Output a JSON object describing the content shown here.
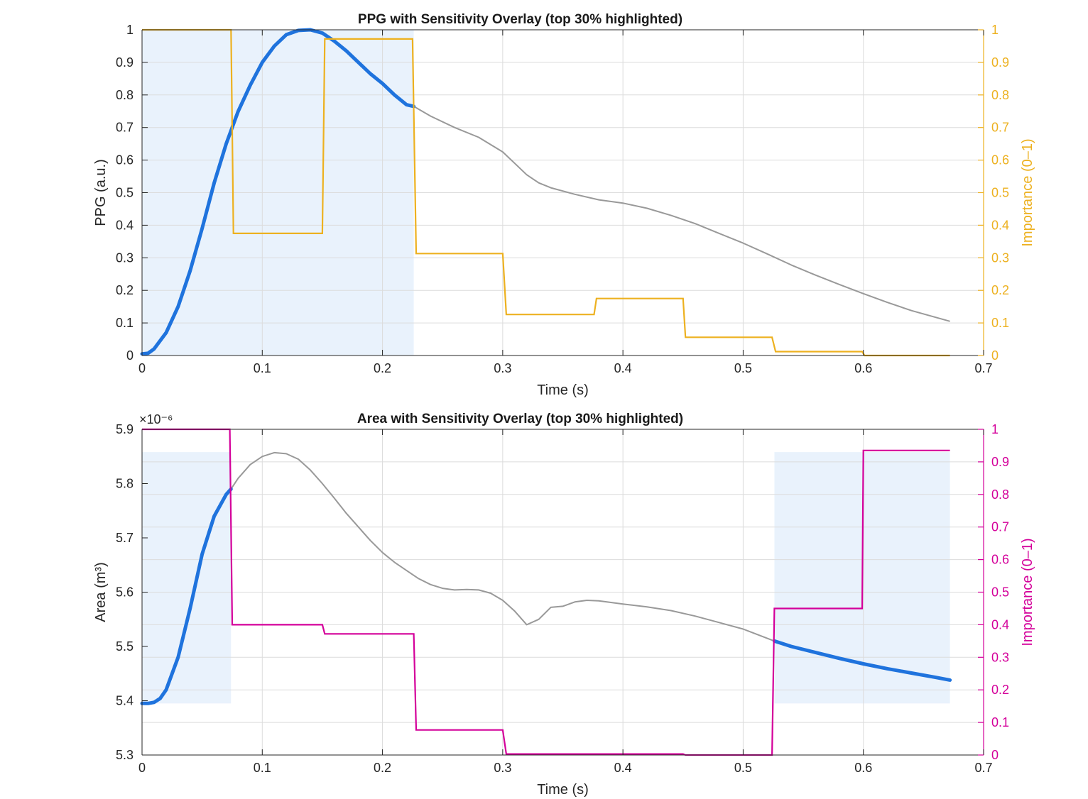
{
  "colors": {
    "ppg_importance": "#EDB120",
    "area_importance": "#D4009A",
    "trace": "#999999",
    "highlight": "#1F73DD",
    "shade": "#E9F2FC",
    "grid": "#DCDCDC",
    "axis": "#262626"
  },
  "chart_data": [
    {
      "type": "line",
      "title": "PPG with Sensitivity Overlay (top 30% highlighted)",
      "xlabel": "Time (s)",
      "ylabel": "PPG (a.u.)",
      "ylabel_right": "Importance (0–1)",
      "xlim": [
        0,
        0.7
      ],
      "ylim": [
        0,
        1
      ],
      "ylim_right": [
        0,
        1
      ],
      "y_exponent": "",
      "grid": true,
      "xticks": [
        "0",
        "0.1",
        "0.2",
        "0.3",
        "0.4",
        "0.5",
        "0.6",
        "0.7"
      ],
      "yticks": [
        "0",
        "0.1",
        "0.2",
        "0.3",
        "0.4",
        "0.5",
        "0.6",
        "0.7",
        "0.8",
        "0.9",
        "1"
      ],
      "yticks_right": [
        "0",
        "0.1",
        "0.2",
        "0.3",
        "0.4",
        "0.5",
        "0.6",
        "0.7",
        "0.8",
        "0.9",
        "1"
      ],
      "shaded_regions": [
        {
          "x": [
            0,
            0.226
          ],
          "y": [
            0,
            1
          ]
        }
      ],
      "series": [
        {
          "role": "signal",
          "x": [
            0,
            0.005,
            0.01,
            0.02,
            0.03,
            0.04,
            0.05,
            0.06,
            0.07,
            0.08,
            0.09,
            0.1,
            0.11,
            0.12,
            0.13,
            0.14,
            0.15,
            0.16,
            0.17,
            0.18,
            0.19,
            0.2,
            0.21,
            0.22,
            0.226,
            0.24,
            0.26,
            0.28,
            0.3,
            0.31,
            0.32,
            0.33,
            0.34,
            0.36,
            0.38,
            0.4,
            0.42,
            0.44,
            0.46,
            0.48,
            0.5,
            0.52,
            0.54,
            0.56,
            0.58,
            0.6,
            0.62,
            0.64,
            0.672
          ],
          "y": [
            0.005,
            0.007,
            0.02,
            0.07,
            0.15,
            0.26,
            0.39,
            0.53,
            0.65,
            0.75,
            0.83,
            0.9,
            0.95,
            0.985,
            0.998,
            1.0,
            0.99,
            0.965,
            0.935,
            0.9,
            0.865,
            0.835,
            0.8,
            0.77,
            0.765,
            0.735,
            0.7,
            0.67,
            0.625,
            0.59,
            0.555,
            0.53,
            0.515,
            0.495,
            0.478,
            0.468,
            0.452,
            0.43,
            0.405,
            0.375,
            0.345,
            0.312,
            0.278,
            0.247,
            0.218,
            0.19,
            0.163,
            0.138,
            0.105
          ]
        },
        {
          "role": "importance",
          "x": [
            0,
            0.074,
            0.076,
            0.15,
            0.152,
            0.225,
            0.228,
            0.3,
            0.303,
            0.376,
            0.378,
            0.45,
            0.452,
            0.524,
            0.527,
            0.599,
            0.601,
            0.672
          ],
          "y": [
            1.0,
            1.0,
            0.375,
            0.375,
            0.972,
            0.972,
            0.313,
            0.313,
            0.126,
            0.126,
            0.175,
            0.175,
            0.056,
            0.056,
            0.012,
            0.012,
            0.0,
            0.0
          ]
        }
      ]
    },
    {
      "type": "line",
      "title": "Area with Sensitivity Overlay (top 30% highlighted)",
      "xlabel": "Time (s)",
      "ylabel": "Area  (m³)",
      "ylabel_right": "Importance (0–1)",
      "xlim": [
        0,
        0.7
      ],
      "ylim": [
        5.3,
        5.9
      ],
      "ylim_right": [
        0,
        1
      ],
      "y_exponent": "×10⁻⁶",
      "grid": true,
      "xticks": [
        "0",
        "0.1",
        "0.2",
        "0.3",
        "0.4",
        "0.5",
        "0.6",
        "0.7"
      ],
      "yticks": [
        "5.3",
        "5.4",
        "5.5",
        "5.6",
        "5.7",
        "5.8",
        "5.9"
      ],
      "yticks_right": [
        "0",
        "0.1",
        "0.2",
        "0.3",
        "0.4",
        "0.5",
        "0.6",
        "0.7",
        "0.8",
        "0.9",
        "1"
      ],
      "shaded_regions": [
        {
          "x": [
            0,
            0.074
          ],
          "y": [
            5.395,
            5.858
          ]
        },
        {
          "x": [
            0.526,
            0.672
          ],
          "y": [
            5.395,
            5.858
          ]
        }
      ],
      "series": [
        {
          "role": "signal",
          "x": [
            0,
            0.005,
            0.01,
            0.015,
            0.02,
            0.03,
            0.04,
            0.05,
            0.06,
            0.07,
            0.074,
            0.08,
            0.09,
            0.1,
            0.11,
            0.12,
            0.13,
            0.14,
            0.15,
            0.16,
            0.17,
            0.18,
            0.19,
            0.2,
            0.21,
            0.22,
            0.23,
            0.24,
            0.25,
            0.26,
            0.27,
            0.28,
            0.29,
            0.3,
            0.31,
            0.32,
            0.33,
            0.34,
            0.35,
            0.36,
            0.37,
            0.38,
            0.39,
            0.4,
            0.42,
            0.44,
            0.46,
            0.48,
            0.5,
            0.526,
            0.54,
            0.56,
            0.58,
            0.6,
            0.62,
            0.64,
            0.66,
            0.672
          ],
          "y": [
            5.395,
            5.395,
            5.397,
            5.404,
            5.42,
            5.48,
            5.57,
            5.67,
            5.74,
            5.78,
            5.79,
            5.81,
            5.835,
            5.85,
            5.857,
            5.855,
            5.845,
            5.825,
            5.8,
            5.773,
            5.745,
            5.72,
            5.695,
            5.673,
            5.655,
            5.64,
            5.625,
            5.614,
            5.607,
            5.604,
            5.605,
            5.604,
            5.598,
            5.585,
            5.565,
            5.54,
            5.55,
            5.572,
            5.574,
            5.582,
            5.585,
            5.584,
            5.581,
            5.578,
            5.573,
            5.566,
            5.556,
            5.544,
            5.532,
            5.51,
            5.5,
            5.489,
            5.478,
            5.468,
            5.459,
            5.451,
            5.443,
            5.438
          ]
        },
        {
          "role": "importance",
          "x": [
            0,
            0.073,
            0.075,
            0.15,
            0.152,
            0.226,
            0.228,
            0.3,
            0.303,
            0.45,
            0.452,
            0.524,
            0.526,
            0.599,
            0.6,
            0.672
          ],
          "y": [
            1.0,
            1.0,
            0.4,
            0.4,
            0.372,
            0.372,
            0.077,
            0.077,
            0.003,
            0.003,
            0.0,
            0.0,
            0.45,
            0.45,
            0.935,
            0.935
          ]
        }
      ]
    }
  ]
}
